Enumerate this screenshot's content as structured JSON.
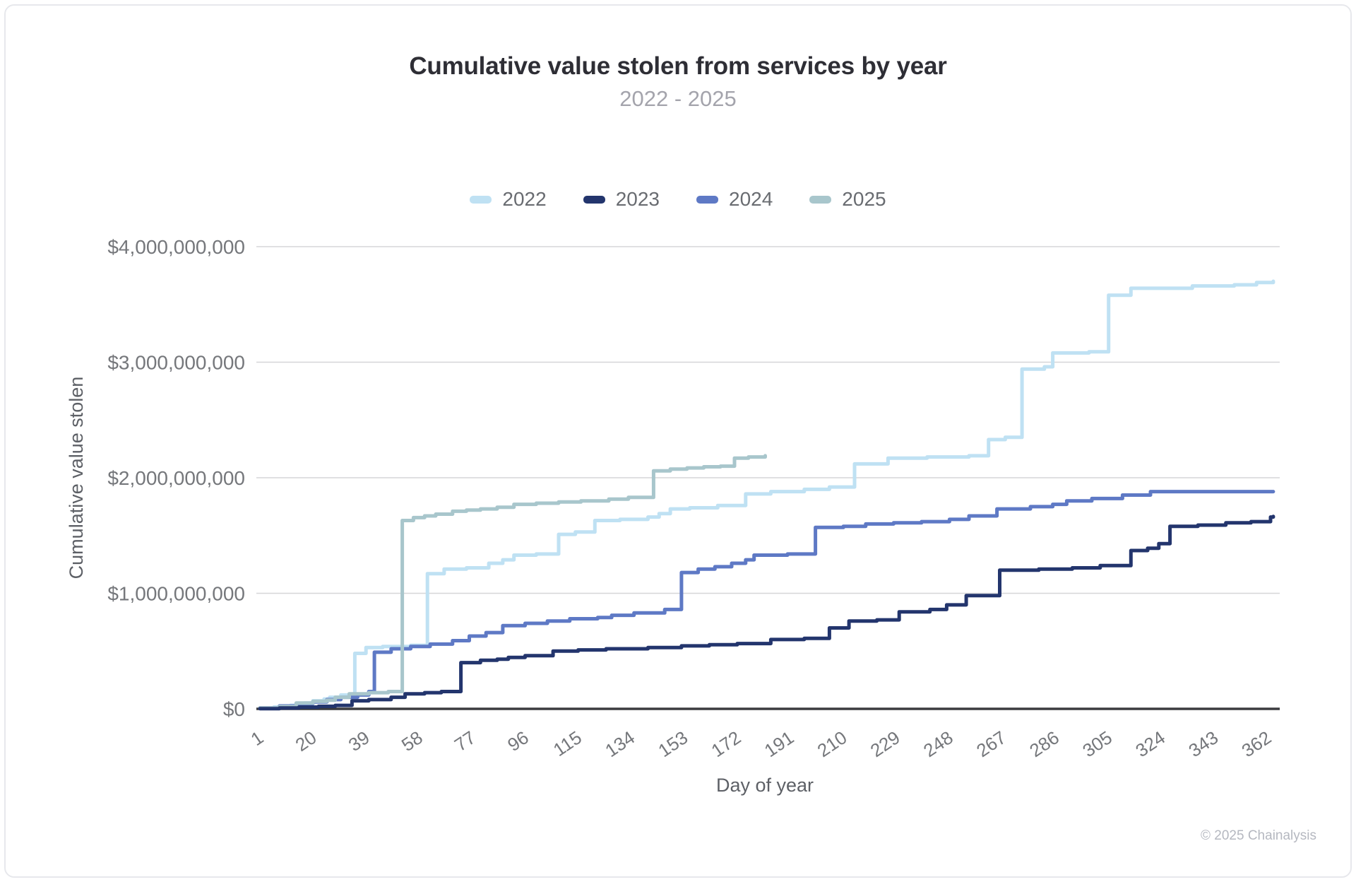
{
  "page": {
    "title": "Cumulative value stolen from services by year",
    "subtitle": "2022 - 2025",
    "footer": "© 2025 Chainalysis"
  },
  "chart_data": {
    "type": "line",
    "step": true,
    "title": "Cumulative value stolen from services by year",
    "subtitle": "2022 - 2025",
    "xlabel": "Day of year",
    "ylabel": "Cumulative value stolen",
    "xlim": [
      1,
      365
    ],
    "ylim": [
      0,
      4000000000
    ],
    "grid": "horizontal",
    "legend_position": "top-center",
    "background": "#ffffff",
    "x_ticks": [
      1,
      20,
      39,
      58,
      77,
      96,
      115,
      134,
      153,
      172,
      191,
      210,
      229,
      248,
      267,
      286,
      305,
      324,
      343,
      362
    ],
    "y_ticks": [
      {
        "value": 0,
        "label": "$0"
      },
      {
        "value": 1000000000,
        "label": "$1,000,000,000"
      },
      {
        "value": 2000000000,
        "label": "$2,000,000,000"
      },
      {
        "value": 3000000000,
        "label": "$3,000,000,000"
      },
      {
        "value": 4000000000,
        "label": "$4,000,000,000"
      }
    ],
    "series": [
      {
        "name": "2022",
        "color": "#bfe1f3",
        "points": [
          [
            1,
            5000000.0
          ],
          [
            6,
            15000000.0
          ],
          [
            12,
            30000000.0
          ],
          [
            17,
            50000000.0
          ],
          [
            20,
            70000000.0
          ],
          [
            24,
            85000000.0
          ],
          [
            26,
            100000000.0
          ],
          [
            30,
            120000000.0
          ],
          [
            35,
            480000000.0
          ],
          [
            39,
            530000000.0
          ],
          [
            45,
            540000000.0
          ],
          [
            55,
            550000000.0
          ],
          [
            61,
            1170000000.0
          ],
          [
            67,
            1210000000.0
          ],
          [
            75,
            1220000000.0
          ],
          [
            83,
            1260000000.0
          ],
          [
            88,
            1290000000.0
          ],
          [
            92,
            1330000000.0
          ],
          [
            100,
            1340000000.0
          ],
          [
            108,
            1510000000.0
          ],
          [
            114,
            1530000000.0
          ],
          [
            121,
            1630000000.0
          ],
          [
            130,
            1640000000.0
          ],
          [
            140,
            1660000000.0
          ],
          [
            144,
            1690000000.0
          ],
          [
            148,
            1730000000.0
          ],
          [
            155,
            1740000000.0
          ],
          [
            165,
            1760000000.0
          ],
          [
            175,
            1860000000.0
          ],
          [
            184,
            1880000000.0
          ],
          [
            196,
            1900000000.0
          ],
          [
            205,
            1920000000.0
          ],
          [
            214,
            2120000000.0
          ],
          [
            226,
            2170000000.0
          ],
          [
            240,
            2180000000.0
          ],
          [
            255,
            2190000000.0
          ],
          [
            262,
            2330000000.0
          ],
          [
            268,
            2350000000.0
          ],
          [
            274,
            2940000000.0
          ],
          [
            282,
            2960000000.0
          ],
          [
            285,
            3080000000.0
          ],
          [
            298,
            3090000000.0
          ],
          [
            305,
            3580000000.0
          ],
          [
            313,
            3640000000.0
          ],
          [
            335,
            3660000000.0
          ],
          [
            350,
            3670000000.0
          ],
          [
            358,
            3690000000.0
          ],
          [
            364,
            3700000000.0
          ]
        ]
      },
      {
        "name": "2023",
        "color": "#23356d",
        "points": [
          [
            1,
            2000000.0
          ],
          [
            8,
            8000000.0
          ],
          [
            15,
            15000000.0
          ],
          [
            22,
            22000000.0
          ],
          [
            28,
            30000000.0
          ],
          [
            34,
            70000000.0
          ],
          [
            40,
            80000000.0
          ],
          [
            48,
            100000000.0
          ],
          [
            53,
            130000000.0
          ],
          [
            60,
            140000000.0
          ],
          [
            66,
            150000000.0
          ],
          [
            73,
            400000000.0
          ],
          [
            80,
            420000000.0
          ],
          [
            86,
            430000000.0
          ],
          [
            90,
            445000000.0
          ],
          [
            96,
            460000000.0
          ],
          [
            106,
            500000000.0
          ],
          [
            115,
            510000000.0
          ],
          [
            125,
            520000000.0
          ],
          [
            140,
            530000000.0
          ],
          [
            152,
            545000000.0
          ],
          [
            162,
            555000000.0
          ],
          [
            172,
            565000000.0
          ],
          [
            184,
            600000000.0
          ],
          [
            196,
            610000000.0
          ],
          [
            205,
            700000000.0
          ],
          [
            212,
            760000000.0
          ],
          [
            222,
            770000000.0
          ],
          [
            230,
            840000000.0
          ],
          [
            241,
            860000000.0
          ],
          [
            247,
            900000000.0
          ],
          [
            254,
            980000000.0
          ],
          [
            266,
            1200000000.0
          ],
          [
            280,
            1210000000.0
          ],
          [
            292,
            1220000000.0
          ],
          [
            302,
            1240000000.0
          ],
          [
            313,
            1370000000.0
          ],
          [
            319,
            1390000000.0
          ],
          [
            323,
            1430000000.0
          ],
          [
            327,
            1580000000.0
          ],
          [
            337,
            1590000000.0
          ],
          [
            347,
            1610000000.0
          ],
          [
            356,
            1620000000.0
          ],
          [
            363,
            1660000000.0
          ],
          [
            364,
            1665000000.0
          ]
        ]
      },
      {
        "name": "2024",
        "color": "#5e79c5",
        "points": [
          [
            1,
            8000000.0
          ],
          [
            8,
            25000000.0
          ],
          [
            14,
            45000000.0
          ],
          [
            20,
            60000000.0
          ],
          [
            25,
            80000000.0
          ],
          [
            30,
            100000000.0
          ],
          [
            36,
            120000000.0
          ],
          [
            40,
            150000000.0
          ],
          [
            42,
            490000000.0
          ],
          [
            48,
            520000000.0
          ],
          [
            55,
            540000000.0
          ],
          [
            62,
            560000000.0
          ],
          [
            70,
            590000000.0
          ],
          [
            76,
            630000000.0
          ],
          [
            82,
            660000000.0
          ],
          [
            88,
            720000000.0
          ],
          [
            96,
            740000000.0
          ],
          [
            104,
            760000000.0
          ],
          [
            112,
            780000000.0
          ],
          [
            122,
            790000000.0
          ],
          [
            127,
            810000000.0
          ],
          [
            135,
            830000000.0
          ],
          [
            146,
            860000000.0
          ],
          [
            152,
            1180000000.0
          ],
          [
            158,
            1210000000.0
          ],
          [
            164,
            1230000000.0
          ],
          [
            170,
            1260000000.0
          ],
          [
            175,
            1290000000.0
          ],
          [
            178,
            1330000000.0
          ],
          [
            190,
            1340000000.0
          ],
          [
            200,
            1570000000.0
          ],
          [
            210,
            1580000000.0
          ],
          [
            218,
            1600000000.0
          ],
          [
            228,
            1610000000.0
          ],
          [
            238,
            1620000000.0
          ],
          [
            248,
            1640000000.0
          ],
          [
            255,
            1670000000.0
          ],
          [
            265,
            1730000000.0
          ],
          [
            277,
            1750000000.0
          ],
          [
            285,
            1770000000.0
          ],
          [
            290,
            1800000000.0
          ],
          [
            299,
            1820000000.0
          ],
          [
            310,
            1850000000.0
          ],
          [
            320,
            1880000000.0
          ],
          [
            364,
            1880000000.0
          ]
        ]
      },
      {
        "name": "2025",
        "color": "#a8c6cc",
        "points": [
          [
            1,
            8000000.0
          ],
          [
            8,
            20000000.0
          ],
          [
            14,
            50000000.0
          ],
          [
            20,
            65000000.0
          ],
          [
            25,
            75000000.0
          ],
          [
            28,
            100000000.0
          ],
          [
            33,
            130000000.0
          ],
          [
            40,
            140000000.0
          ],
          [
            47,
            150000000.0
          ],
          [
            52,
            1630000000.0
          ],
          [
            56,
            1655000000.0
          ],
          [
            60,
            1670000000.0
          ],
          [
            64,
            1685000000.0
          ],
          [
            70,
            1710000000.0
          ],
          [
            75,
            1720000000.0
          ],
          [
            80,
            1730000000.0
          ],
          [
            86,
            1745000000.0
          ],
          [
            92,
            1770000000.0
          ],
          [
            100,
            1780000000.0
          ],
          [
            108,
            1790000000.0
          ],
          [
            116,
            1800000000.0
          ],
          [
            126,
            1815000000.0
          ],
          [
            133,
            1830000000.0
          ],
          [
            142,
            2060000000.0
          ],
          [
            148,
            2075000000.0
          ],
          [
            154,
            2085000000.0
          ],
          [
            160,
            2095000000.0
          ],
          [
            166,
            2100000000.0
          ],
          [
            171,
            2170000000.0
          ],
          [
            176,
            2180000000.0
          ],
          [
            182,
            2190000000.0
          ]
        ]
      }
    ],
    "style": {
      "grid_color": "#d6d6d8",
      "zero_axis_color": "#3b3b3f",
      "line_width": 5,
      "draw_order": [
        0,
        2,
        3,
        1
      ]
    }
  }
}
